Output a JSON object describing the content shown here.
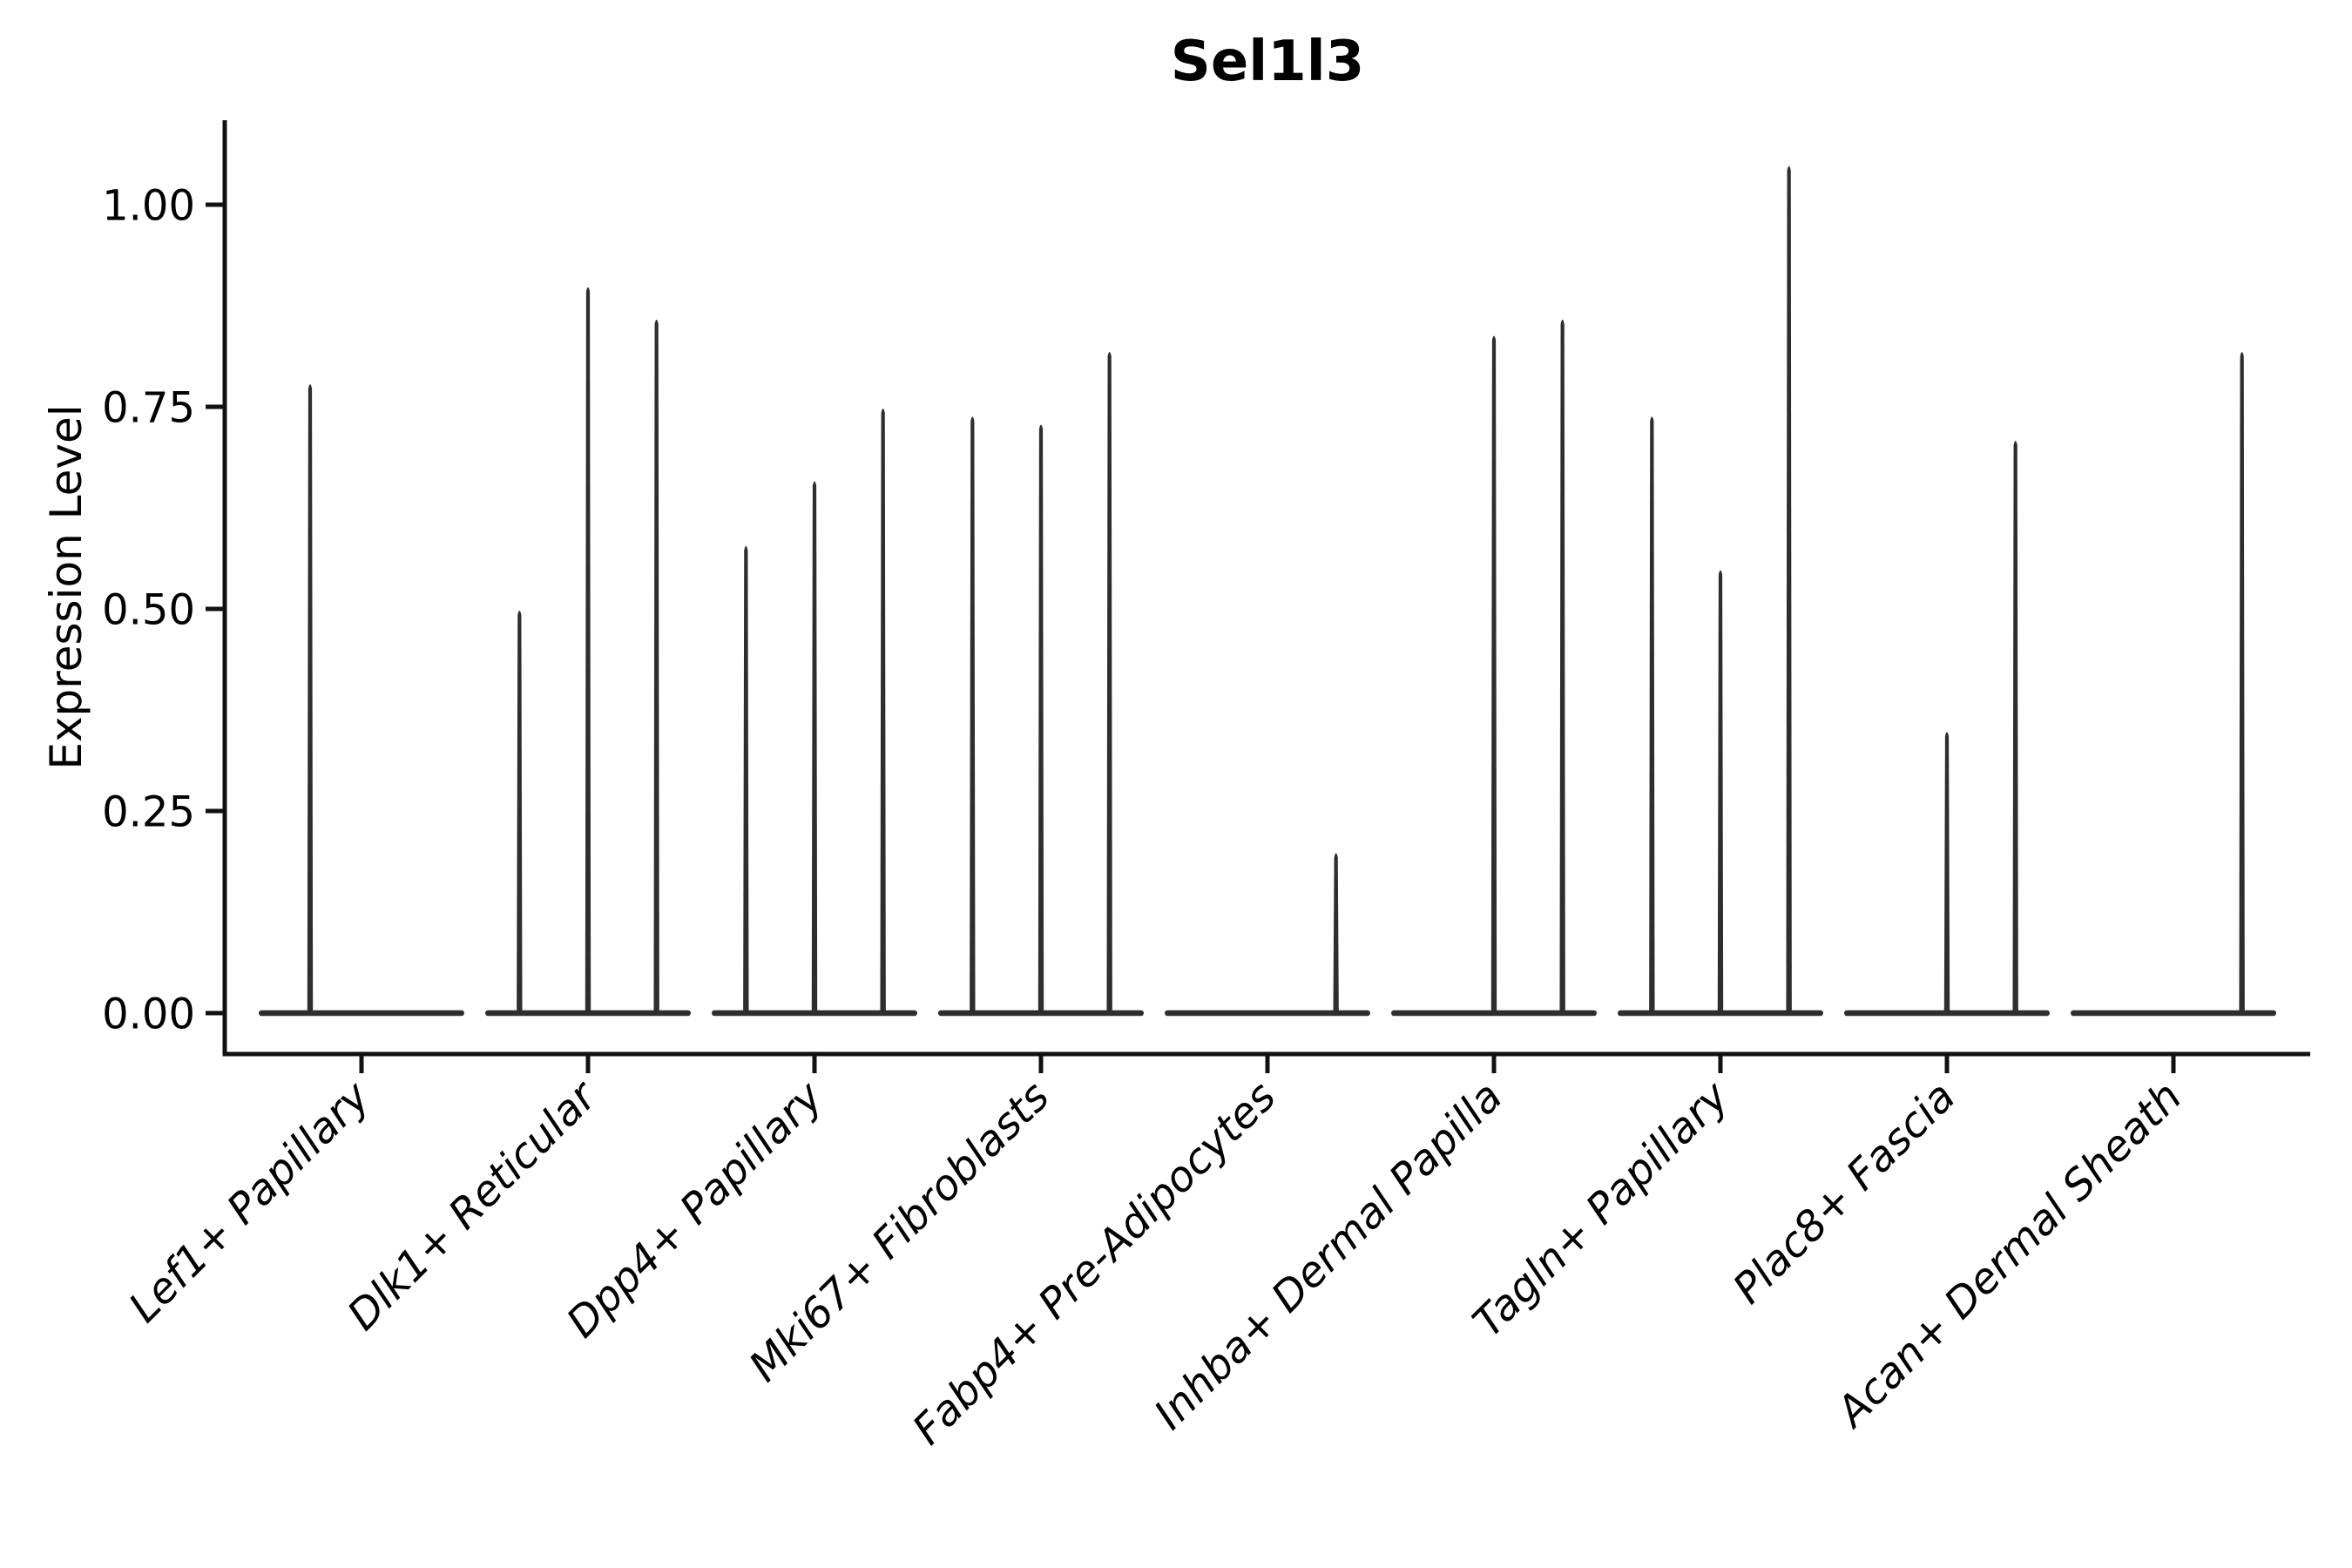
{
  "chart_data": {
    "type": "violin",
    "title": "Sel1l3",
    "ylabel": "Expression Level",
    "xlabel": "",
    "grid": false,
    "legend": false,
    "ylim": [
      -0.05,
      1.1
    ],
    "yticks": [
      {
        "label": "0.00",
        "value": 0.0
      },
      {
        "label": "0.25",
        "value": 0.25
      },
      {
        "label": "0.50",
        "value": 0.5
      },
      {
        "label": "0.75",
        "value": 0.75
      },
      {
        "label": "1.00",
        "value": 1.0
      }
    ],
    "categories": [
      "Lef1+ Papillary",
      "Dlk1+ Reticular",
      "Dpp4+ Papillary",
      "Mki67+ Fibroblasts",
      "Fabp4+ Pre-Adipocytes",
      "Inhba+ Dermal Papilla",
      "Tagln+ Papillary",
      "Plac8+ Fascia",
      "Acan+ Dermal Sheath"
    ],
    "violins": [
      {
        "category": "Lef1+ Papillary",
        "max_values": [
          0.78,
          0
        ]
      },
      {
        "category": "Dlk1+ Reticular",
        "max_values": [
          0.5,
          0.9,
          0.86
        ]
      },
      {
        "category": "Dpp4+ Papillary",
        "max_values": [
          0.58,
          0.66,
          0.75
        ]
      },
      {
        "category": "Mki67+ Fibroblasts",
        "max_values": [
          0.74,
          0.73,
          0.82
        ]
      },
      {
        "category": "Fabp4+ Pre-Adipocytes",
        "max_values": [
          0,
          0,
          0.2
        ]
      },
      {
        "category": "Inhba+ Dermal Papilla",
        "max_values": [
          0,
          0.84,
          0.86
        ]
      },
      {
        "category": "Tagln+ Papillary",
        "max_values": [
          0.74,
          0.55,
          1.05
        ]
      },
      {
        "category": "Plac8+ Fascia",
        "max_values": [
          0,
          0.35,
          0.71
        ]
      },
      {
        "category": "Acan+ Dermal Sheath",
        "max_values": [
          0,
          0,
          0.82
        ]
      }
    ],
    "colors": {
      "violin": "#2e2e2e",
      "axis": "#111111",
      "text": "#000000",
      "background": "#ffffff"
    }
  }
}
